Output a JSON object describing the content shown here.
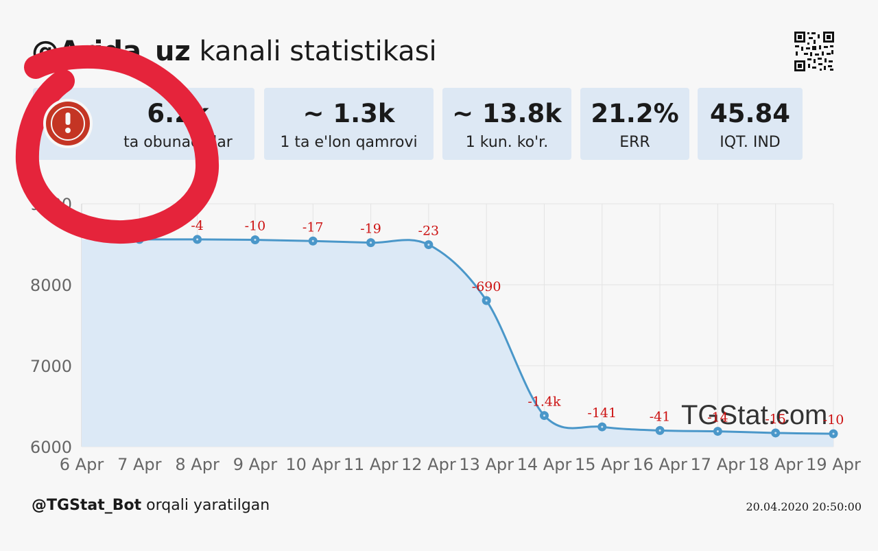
{
  "header": {
    "channel_handle": "@Arida_uz",
    "title_suffix": " kanali statistikasi"
  },
  "stats": [
    {
      "value": "6.2k",
      "label": "ta obunachilar"
    },
    {
      "value": "~ 1.3k",
      "label": "1 ta e'lon qamrovi"
    },
    {
      "value": "~ 13.8k",
      "label": "1 kun. ko'r."
    },
    {
      "value": "21.2%",
      "label": "ERR"
    },
    {
      "value": "45.84",
      "label": "IQT. IND"
    }
  ],
  "chart_data": {
    "type": "area",
    "x": [
      "6 Apr",
      "7 Apr",
      "8 Apr",
      "9 Apr",
      "10 Apr",
      "11 Apr",
      "12 Apr",
      "13 Apr",
      "14 Apr",
      "15 Apr",
      "16 Apr",
      "17 Apr",
      "18 Apr",
      "19 Apr"
    ],
    "series": [
      {
        "values": [
          null,
          8560,
          8560,
          8555,
          8540,
          8520,
          8495,
          7805,
          6385,
          6245,
          6200,
          6190,
          6170,
          6160
        ],
        "data_labels": [
          "",
          "",
          "-4",
          "-10",
          "-17",
          "-19",
          "-23",
          "-690",
          "-1.4k",
          "-141",
          "-41",
          "-14",
          "-15",
          "-10"
        ]
      }
    ],
    "yticks": [
      6000,
      7000,
      8000,
      9000
    ],
    "ylim": [
      6000,
      9000
    ],
    "grid": true,
    "watermark": "TGStat.com",
    "colors": {
      "line": "#4a97c9",
      "fill": "#dce9f6",
      "label": "#cc1111"
    }
  },
  "footer": {
    "bot": "@TGStat_Bot",
    "suffix": " orqali yaratilgan",
    "timestamp": "20.04.2020 20:50:00"
  }
}
